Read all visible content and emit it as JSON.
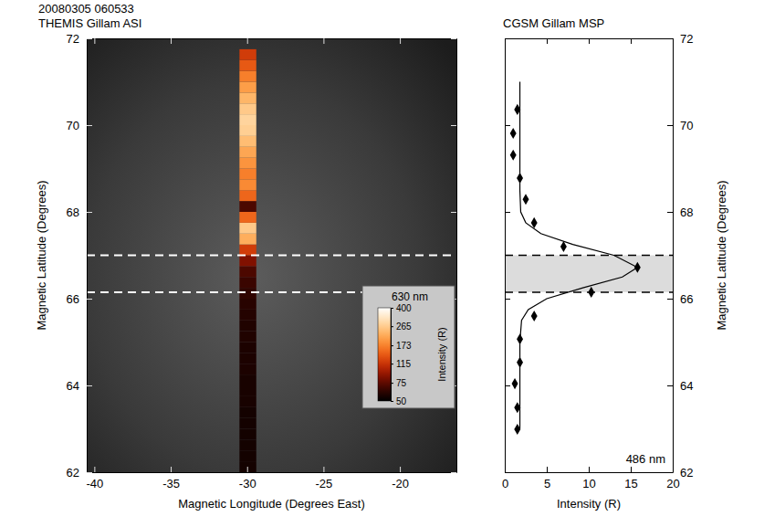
{
  "chart_data": [
    {
      "type": "heatmap",
      "title": "20080305 060533",
      "subtitle": "THEMIS Gillam ASI",
      "x_label": "Magnetic Longitude (Degrees East)",
      "y_label": "Magnetic Latitude (Degrees)",
      "xlim": [
        -40.5,
        -16.3
      ],
      "xticks": [
        -40,
        -35,
        -30,
        -25,
        -20
      ],
      "ylim": [
        62,
        72
      ],
      "yticks": [
        62,
        64,
        66,
        68,
        70,
        72
      ],
      "band": [
        66.15,
        67.0
      ],
      "strip": {
        "x_bins": [
          -30.5,
          -29.4
        ],
        "y_bins": [
          62.0,
          62.25,
          62.5,
          62.75,
          63.0,
          63.25,
          63.5,
          63.75,
          64.0,
          64.25,
          64.5,
          64.75,
          65.0,
          65.25,
          65.5,
          65.75,
          66.0,
          66.25,
          66.5,
          66.75,
          67.0,
          67.25,
          67.5,
          67.75,
          68.0,
          68.25,
          68.5,
          68.75,
          69.0,
          69.25,
          69.5,
          69.75,
          70.0,
          70.25,
          70.5,
          70.75,
          71.0,
          71.25,
          71.5,
          71.75
        ],
        "values": [
          55,
          55,
          55,
          55,
          55,
          55,
          56,
          56,
          56,
          57,
          57,
          57,
          58,
          58,
          59,
          60,
          62,
          65,
          70,
          85,
          120,
          220,
          260,
          150,
          70,
          150,
          180,
          170,
          190,
          210,
          240,
          270,
          280,
          260,
          230,
          200,
          170,
          140,
          120
        ]
      },
      "colorbar": {
        "title": "630 nm",
        "label": "Intensity (R)",
        "range": [
          50,
          400
        ],
        "ticks": [
          50,
          75,
          115,
          173,
          265,
          400
        ],
        "log": true
      }
    },
    {
      "type": "scatter",
      "title": "CGSM Gillam MSP",
      "x_label": "Intensity (R)",
      "y_label": "Magnetic Latitude (Degrees)",
      "annotation": "486 nm",
      "xlim": [
        0,
        20
      ],
      "xticks": [
        0,
        5,
        10,
        15,
        20
      ],
      "ylim": [
        62,
        72
      ],
      "yticks": [
        62,
        64,
        66,
        68,
        70,
        72
      ],
      "band": [
        66.15,
        67.0
      ],
      "tick_labels": "x",
      "series": [
        {
          "type": "scatter",
          "marker": "diamond",
          "color": "#000000",
          "x": [
            1.5,
            1.0,
            1.0,
            1.8,
            2.5,
            3.5,
            7.0,
            15.8,
            10.3,
            3.5,
            1.8,
            1.8,
            1.2,
            1.5,
            1.5
          ],
          "y": [
            70.36,
            69.81,
            69.31,
            68.78,
            68.29,
            67.75,
            67.2,
            66.72,
            66.15,
            65.6,
            65.07,
            64.53,
            64.04,
            63.49,
            62.99
          ]
        },
        {
          "type": "line",
          "line_style": "solid",
          "color": "#000000",
          "x": [
            1.8,
            1.8,
            1.8,
            2.0,
            2.8,
            5.0,
            9.3,
            14.0,
            15.8,
            13.0,
            8.1,
            4.3,
            2.5,
            1.9,
            1.8,
            1.8,
            1.8,
            1.8
          ],
          "y": [
            63.0,
            64.0,
            65.0,
            65.5,
            65.75,
            66.0,
            66.25,
            66.5,
            66.72,
            67.0,
            67.25,
            67.5,
            67.75,
            68.0,
            68.5,
            69.0,
            70.0,
            71.0
          ]
        }
      ]
    }
  ]
}
